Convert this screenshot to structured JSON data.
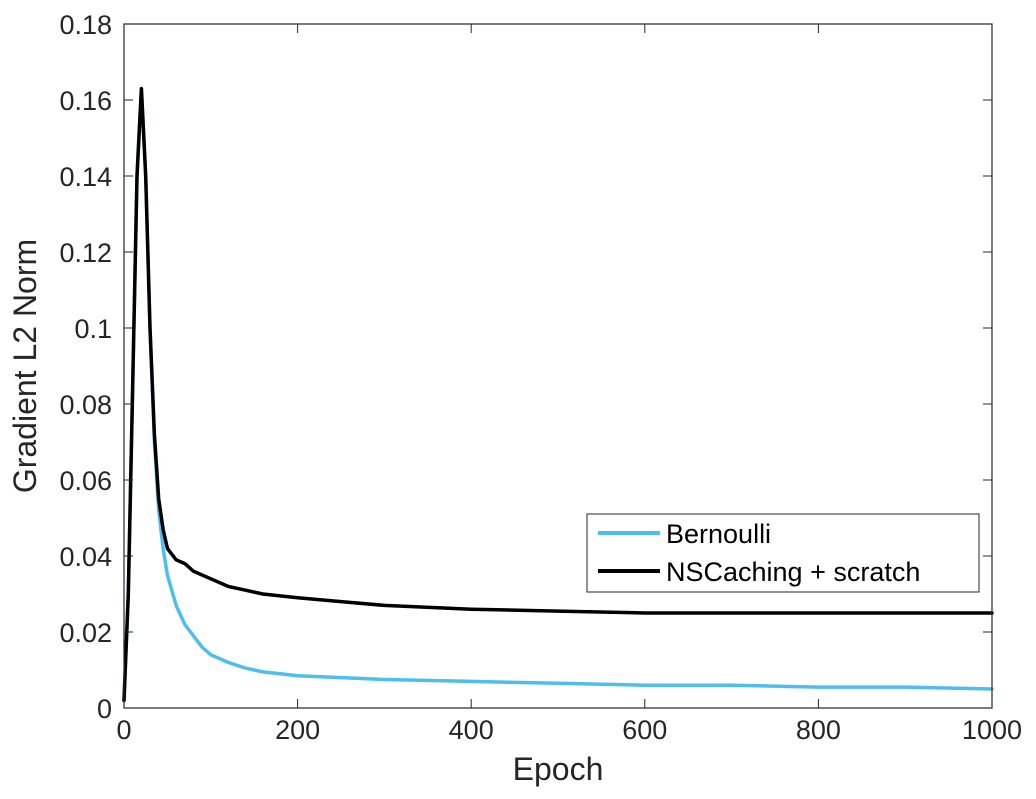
{
  "chart_data": {
    "type": "line",
    "title": "",
    "xlabel": "Epoch",
    "ylabel": "Gradient L2 Norm",
    "xlim": [
      0,
      1000
    ],
    "ylim": [
      0,
      0.18
    ],
    "x_ticks": [
      0,
      200,
      400,
      600,
      800,
      1000
    ],
    "y_ticks": [
      0,
      0.02,
      0.04,
      0.06,
      0.08,
      0.1,
      0.12,
      0.14,
      0.16,
      0.18
    ],
    "x_tick_labels": [
      "0",
      "200",
      "400",
      "600",
      "800",
      "1000"
    ],
    "y_tick_labels": [
      "0",
      "0.02",
      "0.04",
      "0.06",
      "0.08",
      "0.1",
      "0.12",
      "0.14",
      "0.16",
      "0.18"
    ],
    "grid": false,
    "legend_position": "lower-right",
    "series": [
      {
        "name": "Bernoulli",
        "color": "#4DBEEE",
        "x": [
          0,
          5,
          10,
          15,
          20,
          25,
          30,
          35,
          40,
          45,
          50,
          60,
          70,
          80,
          90,
          100,
          120,
          140,
          160,
          180,
          200,
          250,
          300,
          400,
          500,
          600,
          700,
          800,
          900,
          1000
        ],
        "y": [
          0.002,
          0.03,
          0.085,
          0.14,
          0.163,
          0.14,
          0.1,
          0.07,
          0.052,
          0.042,
          0.035,
          0.027,
          0.022,
          0.019,
          0.016,
          0.014,
          0.012,
          0.0105,
          0.0095,
          0.009,
          0.0085,
          0.008,
          0.0075,
          0.007,
          0.0065,
          0.006,
          0.006,
          0.0055,
          0.0055,
          0.005
        ]
      },
      {
        "name": "NSCaching + scratch",
        "color": "#000000",
        "x": [
          0,
          5,
          10,
          15,
          20,
          25,
          30,
          35,
          40,
          45,
          50,
          60,
          70,
          80,
          90,
          100,
          120,
          140,
          160,
          180,
          200,
          250,
          300,
          400,
          500,
          600,
          700,
          800,
          900,
          1000
        ],
        "y": [
          0.002,
          0.03,
          0.085,
          0.14,
          0.163,
          0.14,
          0.1,
          0.072,
          0.055,
          0.047,
          0.042,
          0.039,
          0.038,
          0.036,
          0.035,
          0.034,
          0.032,
          0.031,
          0.03,
          0.0295,
          0.029,
          0.028,
          0.027,
          0.026,
          0.0255,
          0.025,
          0.025,
          0.025,
          0.025,
          0.025
        ]
      }
    ]
  }
}
